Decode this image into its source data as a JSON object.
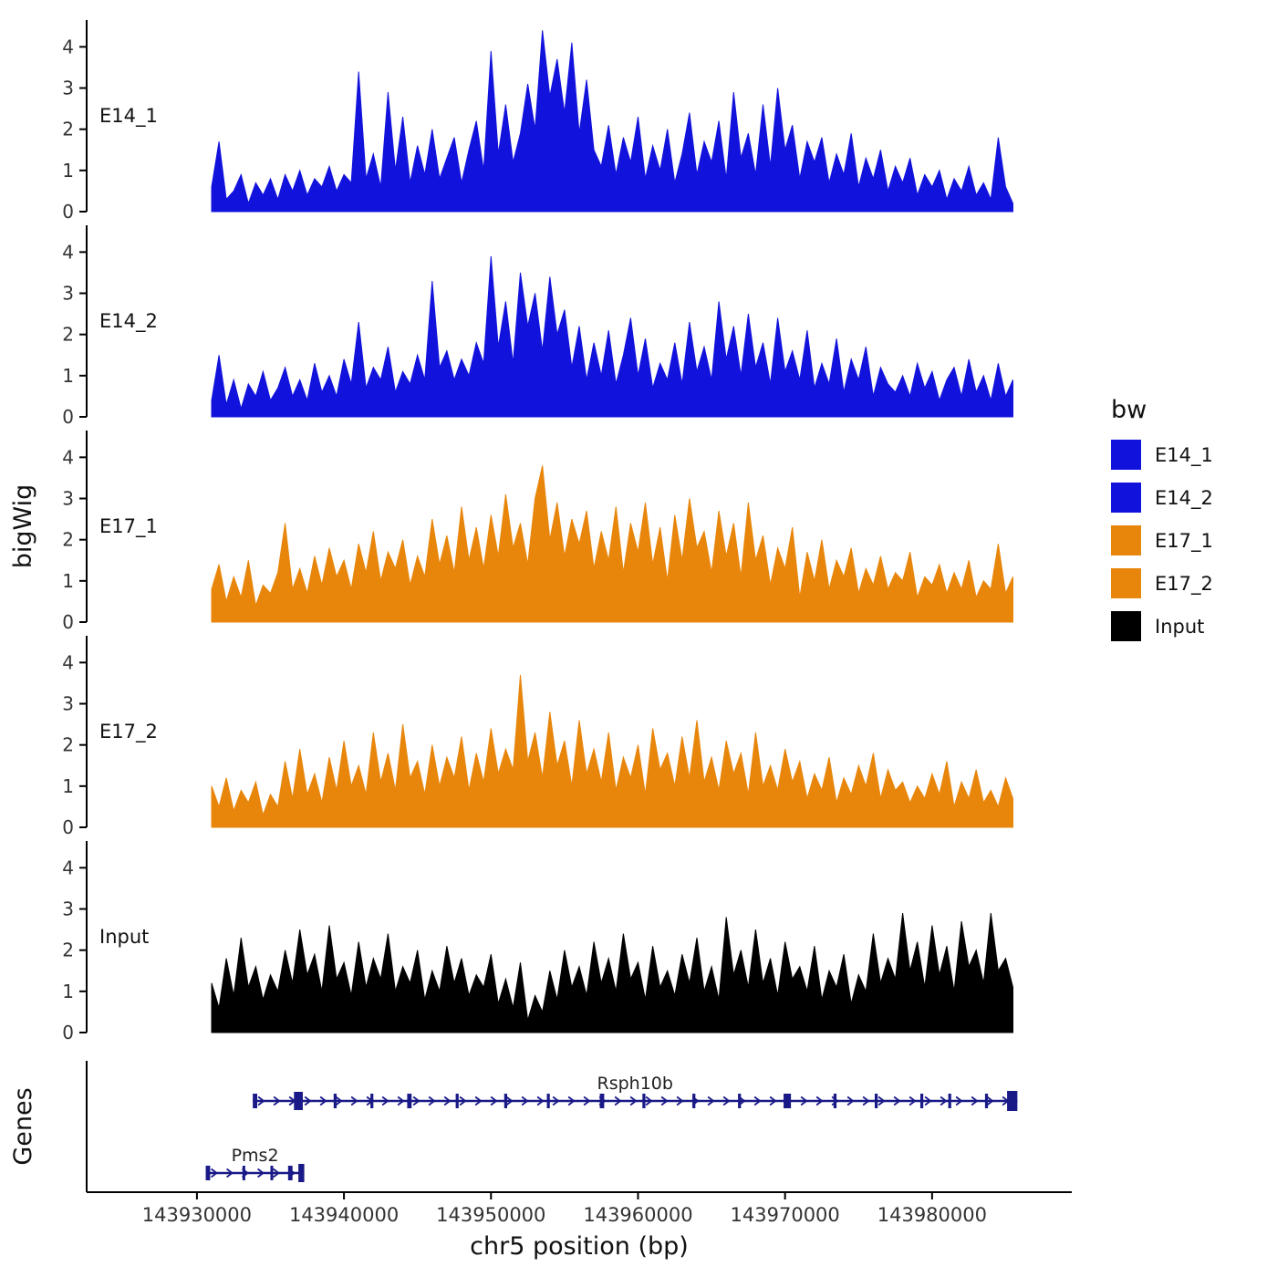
{
  "axes": {
    "x_label": "chr5 position (bp)",
    "y_label": "bigWig",
    "genes_label": "Genes",
    "y_tick_labels": [
      "0",
      "1",
      "2",
      "3",
      "4"
    ],
    "x_ticks": [
      {
        "bp": 143930000,
        "label": "143930000"
      },
      {
        "bp": 143940000,
        "label": "143940000"
      },
      {
        "bp": 143950000,
        "label": "143950000"
      },
      {
        "bp": 143960000,
        "label": "143960000"
      },
      {
        "bp": 143970000,
        "label": "143970000"
      },
      {
        "bp": 143980000,
        "label": "143980000"
      }
    ]
  },
  "legend": {
    "title": "bw",
    "entries": [
      {
        "label": "E14_1",
        "color": "#1212DD"
      },
      {
        "label": "E14_2",
        "color": "#1212DD"
      },
      {
        "label": "E17_1",
        "color": "#E8860C"
      },
      {
        "label": "E17_2",
        "color": "#E8860C"
      },
      {
        "label": "Input",
        "color": "#000000"
      }
    ]
  },
  "chart_data": {
    "type": "area",
    "title": "",
    "xlabel": "chr5 position (bp)",
    "ylabel": "bigWig",
    "x_domain": [
      143922500,
      143989500
    ],
    "data_x_start": 143931000,
    "data_step_bp": 500,
    "ylim": [
      0,
      4.65
    ],
    "y_ticks": [
      0,
      1,
      2,
      3,
      4
    ],
    "series": [
      {
        "name": "E14_1",
        "color": "#1212DD",
        "values": [
          0.6,
          1.7,
          0.3,
          0.5,
          0.9,
          0.2,
          0.7,
          0.4,
          0.8,
          0.3,
          0.9,
          0.5,
          1.0,
          0.4,
          0.8,
          0.6,
          1.1,
          0.5,
          0.9,
          0.7,
          3.4,
          0.8,
          1.4,
          0.6,
          2.9,
          1.0,
          2.3,
          0.7,
          1.6,
          0.9,
          2.0,
          0.8,
          1.3,
          1.8,
          0.7,
          1.5,
          2.2,
          1.0,
          3.9,
          1.4,
          2.6,
          1.2,
          1.9,
          3.1,
          2.0,
          4.4,
          2.8,
          3.7,
          2.4,
          4.1,
          1.9,
          3.2,
          1.5,
          1.1,
          2.1,
          0.9,
          1.8,
          1.2,
          2.3,
          0.8,
          1.6,
          1.0,
          2.0,
          0.7,
          1.4,
          2.4,
          0.9,
          1.7,
          1.2,
          2.2,
          0.8,
          2.9,
          1.3,
          1.9,
          0.9,
          2.6,
          1.1,
          3.0,
          1.5,
          2.1,
          0.8,
          1.7,
          1.2,
          1.8,
          0.7,
          1.4,
          0.9,
          1.9,
          0.6,
          1.3,
          0.8,
          1.5,
          0.5,
          1.1,
          0.7,
          1.3,
          0.4,
          0.9,
          0.6,
          1.0,
          0.3,
          0.8,
          0.5,
          1.1,
          0.4,
          0.7,
          0.3,
          1.8,
          0.6,
          0.2
        ]
      },
      {
        "name": "E14_2",
        "color": "#1212DD",
        "values": [
          0.4,
          1.5,
          0.3,
          0.9,
          0.2,
          0.8,
          0.5,
          1.1,
          0.4,
          0.7,
          1.2,
          0.5,
          0.9,
          0.4,
          1.3,
          0.6,
          1.0,
          0.5,
          1.4,
          0.8,
          2.3,
          0.7,
          1.2,
          0.9,
          1.7,
          0.6,
          1.1,
          0.8,
          1.5,
          0.9,
          3.3,
          1.2,
          1.6,
          0.9,
          1.4,
          1.0,
          1.8,
          1.3,
          3.9,
          1.7,
          2.8,
          1.3,
          3.5,
          2.2,
          3.0,
          1.6,
          3.4,
          2.0,
          2.6,
          1.2,
          2.2,
          0.9,
          1.8,
          1.0,
          2.1,
          0.8,
          1.5,
          2.4,
          1.0,
          1.9,
          0.7,
          1.3,
          0.9,
          1.8,
          0.8,
          2.3,
          1.1,
          1.7,
          0.9,
          2.8,
          1.4,
          2.2,
          1.0,
          2.5,
          1.2,
          1.8,
          0.8,
          2.4,
          1.1,
          1.6,
          0.9,
          2.1,
          0.7,
          1.3,
          0.8,
          1.9,
          0.6,
          1.4,
          0.9,
          1.7,
          0.5,
          1.2,
          0.8,
          0.6,
          1.0,
          0.5,
          1.3,
          0.7,
          1.1,
          0.4,
          0.9,
          1.2,
          0.5,
          1.4,
          0.6,
          1.0,
          0.4,
          1.3,
          0.5,
          0.9
        ]
      },
      {
        "name": "E17_1",
        "color": "#E8860C",
        "values": [
          0.8,
          1.4,
          0.5,
          1.1,
          0.6,
          1.5,
          0.4,
          0.9,
          0.7,
          1.2,
          2.4,
          0.8,
          1.3,
          0.7,
          1.6,
          0.9,
          1.8,
          1.1,
          1.5,
          0.8,
          1.9,
          1.2,
          2.2,
          1.0,
          1.7,
          1.3,
          2.0,
          0.9,
          1.6,
          1.1,
          2.5,
          1.4,
          2.1,
          1.2,
          2.8,
          1.5,
          2.3,
          1.3,
          2.6,
          1.6,
          3.1,
          1.8,
          2.4,
          1.4,
          3.0,
          3.8,
          2.0,
          2.9,
          1.6,
          2.5,
          1.9,
          2.7,
          1.3,
          2.2,
          1.5,
          2.8,
          1.2,
          2.4,
          1.7,
          2.9,
          1.4,
          2.3,
          1.0,
          2.6,
          1.5,
          3.0,
          1.8,
          2.2,
          1.2,
          2.7,
          1.6,
          2.4,
          1.1,
          2.9,
          1.5,
          2.1,
          0.9,
          1.8,
          1.3,
          2.3,
          0.6,
          1.7,
          1.0,
          2.0,
          0.8,
          1.5,
          1.1,
          1.8,
          0.7,
          1.3,
          0.9,
          1.6,
          0.8,
          1.2,
          1.0,
          1.7,
          0.6,
          1.1,
          0.9,
          1.4,
          0.7,
          1.2,
          0.8,
          1.5,
          0.6,
          1.0,
          0.8,
          1.9,
          0.7,
          1.1
        ]
      },
      {
        "name": "E17_2",
        "color": "#E8860C",
        "values": [
          1.0,
          0.5,
          1.2,
          0.4,
          0.9,
          0.6,
          1.1,
          0.3,
          0.8,
          0.5,
          1.6,
          0.7,
          1.9,
          0.8,
          1.3,
          0.6,
          1.7,
          0.9,
          2.1,
          1.0,
          1.5,
          0.8,
          2.3,
          1.1,
          1.8,
          0.9,
          2.5,
          1.2,
          1.6,
          0.8,
          2.0,
          1.0,
          1.7,
          1.2,
          2.2,
          0.9,
          1.8,
          1.1,
          2.4,
          1.3,
          1.9,
          1.4,
          3.7,
          1.6,
          2.3,
          1.2,
          2.8,
          1.5,
          2.1,
          1.0,
          2.6,
          1.3,
          1.9,
          1.1,
          2.3,
          0.9,
          1.7,
          1.2,
          2.0,
          0.8,
          2.4,
          1.4,
          1.8,
          1.0,
          2.2,
          1.2,
          2.6,
          1.1,
          1.7,
          0.9,
          2.1,
          1.3,
          1.8,
          0.8,
          2.3,
          1.0,
          1.5,
          0.9,
          1.9,
          1.1,
          1.6,
          0.7,
          1.3,
          0.9,
          1.7,
          0.6,
          1.2,
          0.8,
          1.5,
          1.0,
          1.8,
          0.7,
          1.4,
          0.9,
          1.1,
          0.6,
          1.0,
          0.7,
          1.3,
          0.8,
          1.6,
          0.5,
          1.1,
          0.7,
          1.4,
          0.6,
          0.9,
          0.5,
          1.2,
          0.7
        ]
      },
      {
        "name": "Input",
        "color": "#000000",
        "values": [
          1.2,
          0.6,
          1.8,
          0.9,
          2.3,
          1.1,
          1.6,
          0.8,
          1.4,
          1.0,
          2.0,
          1.2,
          2.5,
          1.4,
          1.9,
          1.0,
          2.6,
          1.3,
          1.7,
          0.9,
          2.2,
          1.1,
          1.8,
          1.3,
          2.4,
          1.0,
          1.6,
          1.2,
          2.0,
          0.8,
          1.5,
          1.0,
          2.1,
          1.2,
          1.8,
          0.9,
          1.4,
          1.1,
          1.9,
          0.7,
          1.3,
          0.6,
          1.7,
          0.3,
          0.9,
          0.5,
          1.5,
          0.8,
          2.0,
          1.1,
          1.6,
          0.9,
          2.2,
          1.2,
          1.8,
          1.0,
          2.4,
          1.3,
          1.7,
          0.8,
          2.1,
          1.1,
          1.5,
          0.9,
          1.9,
          1.2,
          2.3,
          1.0,
          1.6,
          0.8,
          2.8,
          1.4,
          2.0,
          1.1,
          2.5,
          1.2,
          1.8,
          0.9,
          2.2,
          1.3,
          1.6,
          1.0,
          2.1,
          0.8,
          1.5,
          1.1,
          1.9,
          0.7,
          1.4,
          1.0,
          2.4,
          1.2,
          1.8,
          1.3,
          2.9,
          1.5,
          2.2,
          1.1,
          2.6,
          1.4,
          2.1,
          1.0,
          2.7,
          1.6,
          2.0,
          1.2,
          2.9,
          1.5,
          1.8,
          1.1
        ]
      }
    ],
    "genes": [
      {
        "name": "Rsph10b",
        "strand": "+",
        "row": 0,
        "start": 143933800,
        "end": 143985800,
        "color": "#191987",
        "exons": [
          [
            143933800,
            143934100
          ],
          [
            143936600,
            143937200,
            20
          ],
          [
            143939300,
            143939500
          ],
          [
            143941800,
            143942000
          ],
          [
            143944300,
            143944600
          ],
          [
            143947600,
            143947800
          ],
          [
            143950900,
            143951100
          ],
          [
            143953800,
            143954000
          ],
          [
            143957400,
            143957700
          ],
          [
            143960300,
            143960500
          ],
          [
            143963700,
            143963900
          ],
          [
            143966800,
            143967000
          ],
          [
            143969900,
            143970400
          ],
          [
            143973300,
            143973500
          ],
          [
            143976100,
            143976300
          ],
          [
            143979200,
            143979400
          ],
          [
            143981100,
            143981300
          ],
          [
            143983600,
            143983800
          ],
          [
            143985100,
            143985800,
            22
          ]
        ]
      },
      {
        "name": "Pms2",
        "strand": "+",
        "row": 1,
        "start": 143930600,
        "end": 143937300,
        "color": "#191987",
        "exons": [
          [
            143930600,
            143930900
          ],
          [
            143933100,
            143933250
          ],
          [
            143935000,
            143935150
          ],
          [
            143936200,
            143936500
          ],
          [
            143936900,
            143937300,
            20
          ]
        ]
      }
    ]
  }
}
